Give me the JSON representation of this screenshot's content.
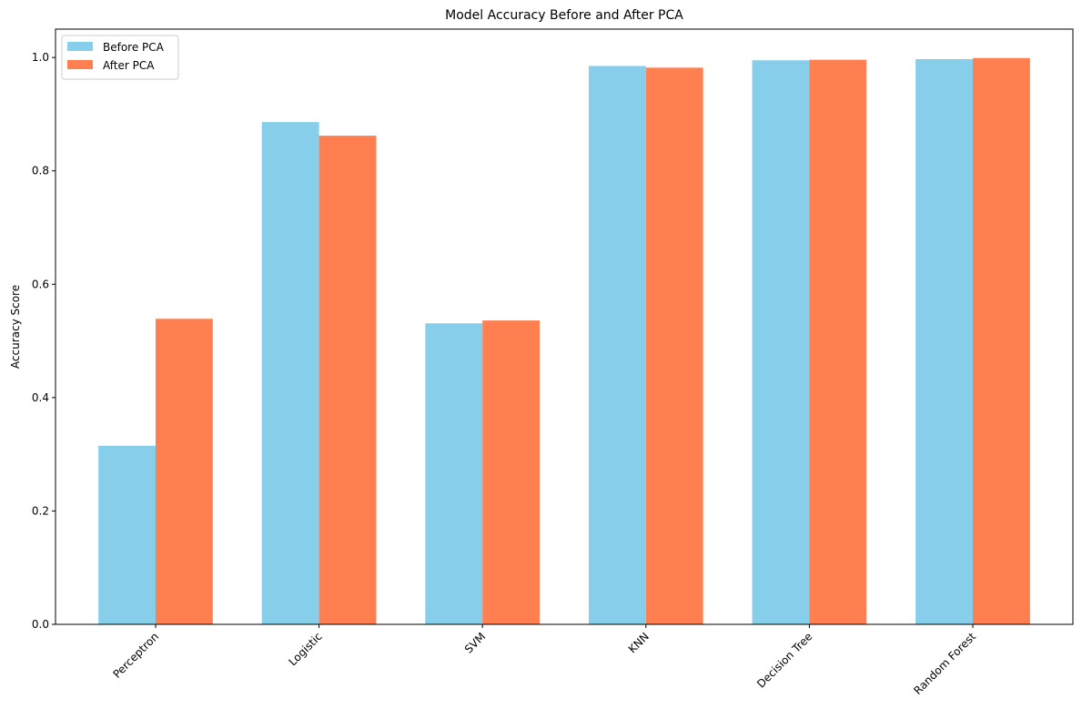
{
  "chart_data": {
    "type": "bar",
    "title": "Model Accuracy Before and After PCA",
    "xlabel": "",
    "ylabel": "Accuracy Score",
    "categories": [
      "Perceptron",
      "Logistic",
      "SVM",
      "KNN",
      "Decision Tree",
      "Random Forest"
    ],
    "series": [
      {
        "name": "Before PCA",
        "color": "#87CEEB",
        "values": [
          0.315,
          0.886,
          0.531,
          0.985,
          0.995,
          0.997
        ]
      },
      {
        "name": "After PCA",
        "color": "#FF7F50",
        "values": [
          0.539,
          0.862,
          0.536,
          0.982,
          0.996,
          0.999
        ]
      }
    ],
    "ylim": [
      0,
      1.05
    ],
    "yticks": [
      "0.0",
      "0.2",
      "0.4",
      "0.6",
      "0.8",
      "1.0"
    ],
    "grid": false,
    "legend_position": "top-left"
  }
}
